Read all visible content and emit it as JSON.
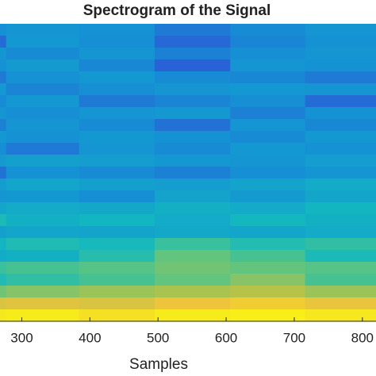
{
  "chart_data": {
    "type": "heatmap",
    "title": "Spectrogram of the Signal",
    "x_label": "Samples",
    "xlim": [
      268,
      820
    ],
    "xticks": [
      300,
      400,
      500,
      600,
      700,
      800
    ],
    "xbins": [
      268,
      277,
      384,
      495,
      606,
      716,
      820
    ],
    "clim": [
      0,
      1
    ],
    "colormap": [
      "#352a87",
      "#2a5ed6",
      "#1591d4",
      "#12b8c0",
      "#4fc48a",
      "#b4c34a",
      "#f0c43b",
      "#f9fb0e"
    ],
    "z": [
      [
        0.28,
        0.3,
        0.29,
        0.22,
        0.27,
        0.3
      ],
      [
        0.18,
        0.31,
        0.28,
        0.17,
        0.25,
        0.29
      ],
      [
        0.3,
        0.27,
        0.3,
        0.24,
        0.28,
        0.3
      ],
      [
        0.29,
        0.32,
        0.26,
        0.15,
        0.3,
        0.29
      ],
      [
        0.22,
        0.29,
        0.31,
        0.27,
        0.26,
        0.22
      ],
      [
        0.31,
        0.25,
        0.28,
        0.3,
        0.31,
        0.3
      ],
      [
        0.27,
        0.31,
        0.22,
        0.25,
        0.28,
        0.18
      ],
      [
        0.3,
        0.28,
        0.3,
        0.31,
        0.24,
        0.29
      ],
      [
        0.24,
        0.3,
        0.27,
        0.2,
        0.3,
        0.26
      ],
      [
        0.31,
        0.29,
        0.31,
        0.29,
        0.27,
        0.31
      ],
      [
        0.28,
        0.22,
        0.3,
        0.27,
        0.31,
        0.29
      ],
      [
        0.32,
        0.34,
        0.33,
        0.31,
        0.3,
        0.33
      ],
      [
        0.2,
        0.29,
        0.27,
        0.24,
        0.28,
        0.3
      ],
      [
        0.33,
        0.36,
        0.34,
        0.33,
        0.35,
        0.38
      ],
      [
        0.3,
        0.31,
        0.28,
        0.35,
        0.32,
        0.36
      ],
      [
        0.36,
        0.38,
        0.37,
        0.4,
        0.38,
        0.42
      ],
      [
        0.45,
        0.4,
        0.42,
        0.38,
        0.43,
        0.4
      ],
      [
        0.34,
        0.36,
        0.35,
        0.37,
        0.36,
        0.38
      ],
      [
        0.42,
        0.46,
        0.44,
        0.52,
        0.47,
        0.5
      ],
      [
        0.38,
        0.4,
        0.48,
        0.6,
        0.55,
        0.45
      ],
      [
        0.52,
        0.55,
        0.58,
        0.62,
        0.6,
        0.58
      ],
      [
        0.46,
        0.5,
        0.55,
        0.6,
        0.65,
        0.55
      ],
      [
        0.62,
        0.65,
        0.68,
        0.7,
        0.72,
        0.68
      ],
      [
        0.8,
        0.82,
        0.8,
        0.85,
        0.88,
        0.84
      ],
      [
        0.95,
        0.96,
        0.93,
        0.96,
        0.97,
        0.95
      ]
    ]
  }
}
